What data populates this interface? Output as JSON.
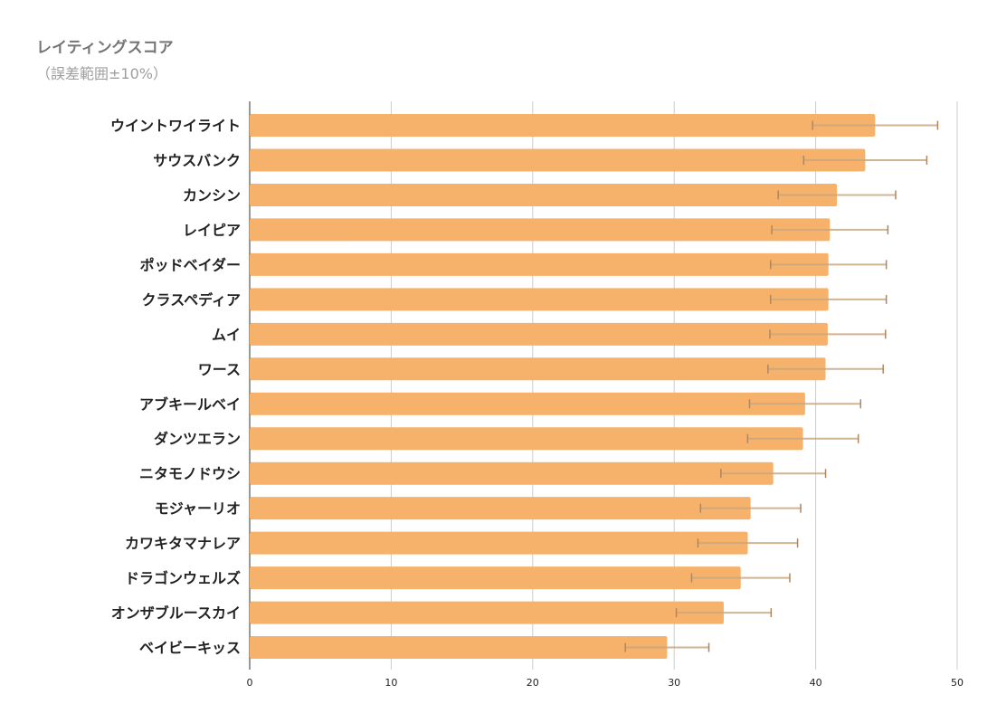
{
  "chart_data": {
    "type": "bar",
    "orientation": "horizontal",
    "title": "レイティングスコア",
    "subtitle": "（誤差範囲±10%）",
    "categories": [
      "ウイントワイライト",
      "サウスバンク",
      "カンシン",
      "レイピア",
      "ポッドベイダー",
      "クラスペディア",
      "ムイ",
      "ワース",
      "アブキールベイ",
      "ダンツエラン",
      "ニタモノドウシ",
      "モジャーリオ",
      "カワキタマナレア",
      "ドラゴンウェルズ",
      "オンザブルースカイ",
      "ベイビーキッス"
    ],
    "values": [
      44.2,
      43.5,
      41.5,
      41.0,
      40.9,
      40.9,
      40.85,
      40.7,
      39.25,
      39.1,
      37.0,
      35.4,
      35.2,
      34.7,
      33.5,
      29.5
    ],
    "error_bars": "±10%",
    "xlim": [
      0,
      50
    ],
    "xticks": [
      0,
      10,
      20,
      30,
      40,
      50
    ],
    "grid": true,
    "bar_color": "#f6b26b",
    "error_bar_color": "#c9a77f"
  }
}
